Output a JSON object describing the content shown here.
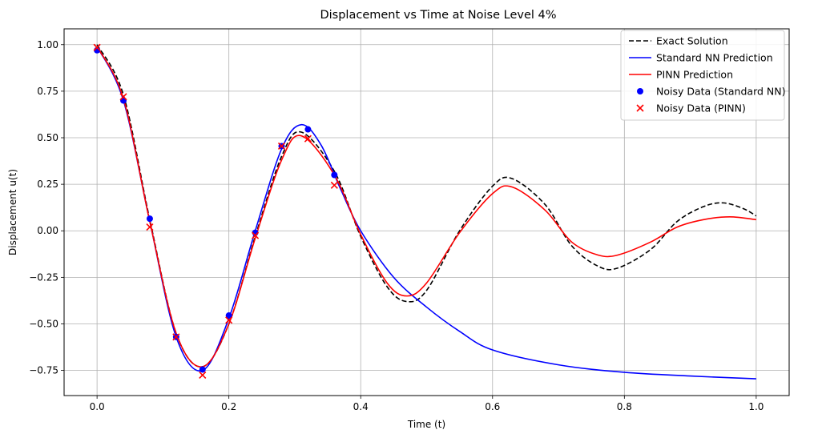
{
  "chart_data": {
    "type": "line",
    "title": "Displacement vs Time at Noise Level 4%",
    "xlabel": "Time (t)",
    "ylabel": "Displacement u(t)",
    "xlim": [
      -0.05,
      1.05
    ],
    "ylim": [
      -0.885,
      1.085
    ],
    "grid": true,
    "legend_position": "top-right",
    "x_ticks": [
      0.0,
      0.2,
      0.4,
      0.6,
      0.8,
      1.0
    ],
    "x_tick_labels": [
      "0.0",
      "0.2",
      "0.4",
      "0.6",
      "0.8",
      "1.0"
    ],
    "y_ticks": [
      -0.75,
      -0.5,
      -0.25,
      0.0,
      0.25,
      0.5,
      0.75,
      1.0
    ],
    "y_tick_labels": [
      "−0.75",
      "−0.50",
      "−0.25",
      "0.00",
      "0.25",
      "0.50",
      "0.75",
      "1.00"
    ],
    "series": [
      {
        "name": "Exact Solution",
        "style": "dashed",
        "color": "#000000",
        "x": [
          0.0,
          0.04,
          0.08,
          0.12,
          0.16,
          0.2,
          0.24,
          0.28,
          0.31,
          0.36,
          0.4,
          0.44,
          0.47,
          0.5,
          0.55,
          0.6,
          0.63,
          0.68,
          0.72,
          0.76,
          0.79,
          0.84,
          0.88,
          0.92,
          0.95,
          0.98,
          1.0
        ],
        "y": [
          1.0,
          0.73,
          0.06,
          -0.55,
          -0.73,
          -0.5,
          -0.03,
          0.4,
          0.53,
          0.32,
          -0.03,
          -0.3,
          -0.38,
          -0.32,
          0.0,
          0.24,
          0.28,
          0.14,
          -0.08,
          -0.19,
          -0.2,
          -0.1,
          0.05,
          0.13,
          0.15,
          0.12,
          0.08
        ]
      },
      {
        "name": "Standard NN Prediction",
        "style": "solid",
        "color": "#0000ff",
        "x": [
          0.0,
          0.04,
          0.08,
          0.12,
          0.16,
          0.2,
          0.24,
          0.28,
          0.31,
          0.34,
          0.37,
          0.4,
          0.45,
          0.5,
          0.55,
          0.6,
          0.7,
          0.8,
          0.9,
          1.0
        ],
        "y": [
          0.99,
          0.7,
          0.05,
          -0.57,
          -0.75,
          -0.47,
          0.0,
          0.44,
          0.57,
          0.46,
          0.22,
          0.0,
          -0.25,
          -0.41,
          -0.54,
          -0.64,
          -0.72,
          -0.76,
          -0.78,
          -0.795
        ]
      },
      {
        "name": "PINN Prediction",
        "style": "solid",
        "color": "#ff0000",
        "x": [
          0.0,
          0.04,
          0.08,
          0.12,
          0.16,
          0.2,
          0.24,
          0.28,
          0.31,
          0.36,
          0.4,
          0.44,
          0.47,
          0.5,
          0.55,
          0.6,
          0.63,
          0.68,
          0.72,
          0.76,
          0.79,
          0.84,
          0.88,
          0.92,
          0.96,
          1.0
        ],
        "y": [
          0.99,
          0.71,
          0.05,
          -0.55,
          -0.73,
          -0.5,
          -0.04,
          0.38,
          0.51,
          0.3,
          -0.02,
          -0.28,
          -0.35,
          -0.28,
          -0.01,
          0.2,
          0.235,
          0.11,
          -0.06,
          -0.13,
          -0.13,
          -0.06,
          0.02,
          0.06,
          0.075,
          0.06
        ]
      }
    ],
    "scatter": [
      {
        "name": "Noisy Data (Standard NN)",
        "marker": "circle",
        "color": "#0000ff",
        "x": [
          0.0,
          0.04,
          0.08,
          0.12,
          0.16,
          0.2,
          0.24,
          0.28,
          0.32,
          0.36
        ],
        "y": [
          0.97,
          0.7,
          0.065,
          -0.57,
          -0.745,
          -0.455,
          -0.01,
          0.455,
          0.545,
          0.3
        ]
      },
      {
        "name": "Noisy Data (PINN)",
        "marker": "x",
        "color": "#ff0000",
        "x": [
          0.0,
          0.04,
          0.08,
          0.12,
          0.16,
          0.2,
          0.24,
          0.28,
          0.32,
          0.36
        ],
        "y": [
          0.985,
          0.72,
          0.02,
          -0.57,
          -0.775,
          -0.48,
          -0.025,
          0.455,
          0.495,
          0.245
        ]
      }
    ]
  }
}
